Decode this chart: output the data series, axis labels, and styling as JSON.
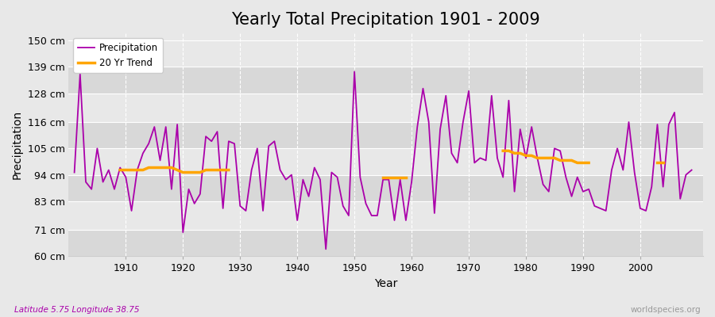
{
  "title": "Yearly Total Precipitation 1901 - 2009",
  "xlabel": "Year",
  "ylabel": "Precipitation",
  "subtitle": "Latitude 5.75 Longitude 38.75",
  "watermark": "worldspecies.org",
  "ylim": [
    60,
    153
  ],
  "yticks": [
    60,
    71,
    83,
    94,
    105,
    116,
    128,
    139,
    150
  ],
  "ytick_labels": [
    "60 cm",
    "71 cm",
    "83 cm",
    "94 cm",
    "105 cm",
    "116 cm",
    "128 cm",
    "139 cm",
    "150 cm"
  ],
  "years": [
    1901,
    1902,
    1903,
    1904,
    1905,
    1906,
    1907,
    1908,
    1909,
    1910,
    1911,
    1912,
    1913,
    1914,
    1915,
    1916,
    1917,
    1918,
    1919,
    1920,
    1921,
    1922,
    1923,
    1924,
    1925,
    1926,
    1927,
    1928,
    1929,
    1930,
    1931,
    1932,
    1933,
    1934,
    1935,
    1936,
    1937,
    1938,
    1939,
    1940,
    1941,
    1942,
    1943,
    1944,
    1945,
    1946,
    1947,
    1948,
    1949,
    1950,
    1951,
    1952,
    1953,
    1954,
    1955,
    1956,
    1957,
    1958,
    1959,
    1960,
    1961,
    1962,
    1963,
    1964,
    1965,
    1966,
    1967,
    1968,
    1969,
    1970,
    1971,
    1972,
    1973,
    1974,
    1975,
    1976,
    1977,
    1978,
    1979,
    1980,
    1981,
    1982,
    1983,
    1984,
    1985,
    1986,
    1987,
    1988,
    1989,
    1990,
    1991,
    1992,
    1993,
    1994,
    1995,
    1996,
    1997,
    1998,
    1999,
    2000,
    2001,
    2002,
    2003,
    2004,
    2005,
    2006,
    2007,
    2008,
    2009
  ],
  "precip": [
    95,
    136,
    91,
    88,
    105,
    91,
    96,
    88,
    97,
    93,
    79,
    96,
    103,
    107,
    114,
    100,
    114,
    88,
    115,
    70,
    88,
    82,
    86,
    110,
    108,
    112,
    80,
    108,
    107,
    81,
    79,
    96,
    105,
    79,
    106,
    108,
    96,
    92,
    94,
    75,
    92,
    85,
    97,
    92,
    63,
    95,
    93,
    81,
    77,
    137,
    93,
    82,
    77,
    77,
    92,
    92,
    75,
    92,
    75,
    91,
    114,
    130,
    116,
    78,
    113,
    127,
    103,
    99,
    116,
    129,
    99,
    101,
    100,
    127,
    101,
    93,
    125,
    87,
    113,
    101,
    114,
    101,
    90,
    87,
    105,
    104,
    93,
    85,
    93,
    87,
    88,
    81,
    80,
    79,
    96,
    105,
    96,
    116,
    95,
    80,
    79,
    89,
    115,
    89,
    115,
    120,
    84,
    94,
    96
  ],
  "trend_seg1_years": [
    1909,
    1910,
    1911,
    1912,
    1913,
    1914,
    1915,
    1916,
    1917,
    1918,
    1919,
    1920,
    1921,
    1922,
    1923,
    1924,
    1925,
    1926,
    1927,
    1928
  ],
  "trend_seg1_vals": [
    96,
    96,
    96,
    96,
    96,
    97,
    97,
    97,
    97,
    97,
    96,
    95,
    95,
    95,
    95,
    96,
    96,
    96,
    96,
    96
  ],
  "trend_seg2_years": [
    1955,
    1956,
    1957,
    1958,
    1959
  ],
  "trend_seg2_vals": [
    93,
    93,
    93,
    93,
    93
  ],
  "trend_seg3_years": [
    1976,
    1977,
    1978,
    1979,
    1980,
    1981,
    1982,
    1983,
    1984,
    1985,
    1986,
    1987,
    1988,
    1989,
    1990,
    1991
  ],
  "trend_seg3_vals": [
    104,
    104,
    103,
    103,
    102,
    102,
    101,
    101,
    101,
    101,
    100,
    100,
    100,
    99,
    99,
    99
  ],
  "trend_seg4_years": [
    2003,
    2004
  ],
  "trend_seg4_vals": [
    99,
    99
  ],
  "precip_color": "#aa00aa",
  "trend_color": "#FFA500",
  "bg_color": "#e8e8e8",
  "plot_bg_color": "#e8e8e8",
  "grid_color": "#ffffff",
  "band_color_dark": "#d8d8d8",
  "band_color_light": "#e8e8e8",
  "title_fontsize": 15,
  "label_fontsize": 10,
  "tick_fontsize": 9,
  "subtitle_color": "#aa00aa",
  "watermark_color": "#999999"
}
